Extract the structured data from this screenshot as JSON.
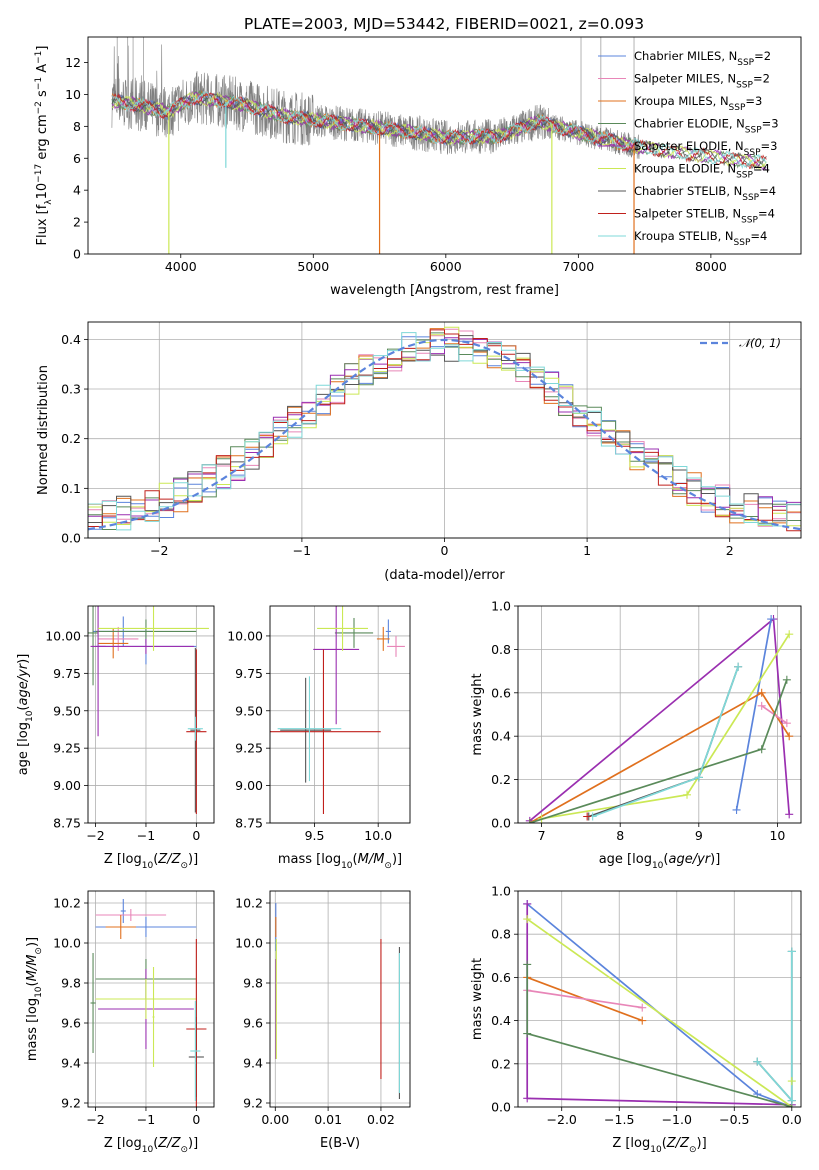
{
  "figure": {
    "title": "PLATE=2003, MJD=53442, FIBERID=0021, z=0.093"
  },
  "colors": {
    "Chabrier MILES": "#5b84dc",
    "Salpeter MILES": "#e886b8",
    "Kroupa MILES": "#e0701e",
    "Chabrier ELODIE": "#5a8a5a",
    "Salpeter ELODIE": "#9a2fb0",
    "Kroupa ELODIE": "#cbe855",
    "Chabrier STELIB": "#555555",
    "Salpeter STELIB": "#c0201c",
    "Kroupa STELIB": "#7fd8d8",
    "data": "#808080",
    "normal": "#5b84dc"
  },
  "chart_data": [
    {
      "id": "spectrum",
      "type": "line",
      "xlabel": "wavelength [Angstrom, rest frame]",
      "ylabel": "Flux [f_λ 10^-17 erg cm^-2 s^-1 A^-1]",
      "xlim": [
        3300,
        8680
      ],
      "ylim": [
        0,
        13.6
      ],
      "xticks": [
        4000,
        5000,
        6000,
        7000,
        8000
      ],
      "yticks": [
        0,
        2,
        4,
        6,
        8,
        10,
        12
      ],
      "legend_position": "upper right",
      "series": [
        {
          "name": "Chabrier MILES",
          "nssp": "2"
        },
        {
          "name": "Salpeter MILES",
          "nssp": "2"
        },
        {
          "name": "Kroupa MILES",
          "nssp": "3"
        },
        {
          "name": "Chabrier ELODIE",
          "nssp": "3"
        },
        {
          "name": "Salpeter ELODIE",
          "nssp": "3"
        },
        {
          "name": "Kroupa ELODIE",
          "nssp": "4"
        },
        {
          "name": "Chabrier STELIB",
          "nssp": "4"
        },
        {
          "name": "Salpeter STELIB",
          "nssp": "4"
        },
        {
          "name": "Kroupa STELIB",
          "nssp": "4"
        }
      ],
      "continuum": [
        [
          3500,
          9.6
        ],
        [
          3700,
          9.3
        ],
        [
          3900,
          8.9
        ],
        [
          4100,
          9.8
        ],
        [
          4300,
          9.6
        ],
        [
          4500,
          9.3
        ],
        [
          4800,
          8.6
        ],
        [
          5200,
          8.2
        ],
        [
          5600,
          7.8
        ],
        [
          6000,
          7.3
        ],
        [
          6400,
          7.4
        ],
        [
          6700,
          8.3
        ],
        [
          7000,
          7.6
        ],
        [
          7400,
          6.8
        ],
        [
          7800,
          6.3
        ],
        [
          8200,
          5.9
        ],
        [
          8420,
          5.7
        ]
      ],
      "spikes": [
        [
          3910,
          0
        ],
        [
          4340,
          5.4
        ],
        [
          5500,
          0
        ],
        [
          6800,
          0
        ],
        [
          7420,
          0
        ]
      ],
      "grid": false
    },
    {
      "id": "residuals",
      "type": "histogram",
      "xlabel": "(data-model)/error",
      "ylabel": "Normed distribution",
      "xlim": [
        -2.5,
        2.5
      ],
      "ylim": [
        0,
        0.435
      ],
      "xticks": [
        -2,
        -1,
        0,
        1,
        2
      ],
      "yticks": [
        0.0,
        0.1,
        0.2,
        0.3,
        0.4
      ],
      "bin_width": 0.1,
      "legend": "𝒩(0, 1)",
      "legend_position": "upper right",
      "grid": true
    },
    {
      "id": "age-vs-Z",
      "type": "errorbar",
      "xlabel": "Z [log10(Z/Z⊙)]",
      "ylabel": "age  [log10(age/yr)]",
      "xlim": [
        -2.15,
        0.35
      ],
      "ylim": [
        8.75,
        10.2
      ],
      "xticks": [
        -2,
        -1,
        0
      ],
      "yticks": [
        8.75,
        9.0,
        9.25,
        9.5,
        9.75,
        10.0
      ],
      "points": [
        {
          "s": "Chabrier MILES",
          "x": -1.45,
          "y": 10.03,
          "xe": 0.6,
          "ye": 0.1
        },
        {
          "s": "Chabrier MILES",
          "x": -1.0,
          "y": 9.93,
          "xe": 1.0,
          "ye": 0.12
        },
        {
          "s": "Salpeter MILES",
          "x": -1.55,
          "y": 9.98,
          "xe": 0.4,
          "ye": 0.08
        },
        {
          "s": "Kroupa MILES",
          "x": -1.65,
          "y": 9.95,
          "xe": 0.3,
          "ye": 0.1
        },
        {
          "s": "Chabrier ELODIE",
          "x": -2.05,
          "y": 10.02,
          "xe": 0.1,
          "ye": 0.35
        },
        {
          "s": "Chabrier ELODIE",
          "x": -1.0,
          "y": 10.03,
          "xe": 1.0,
          "ye": 0.08
        },
        {
          "s": "Salpeter ELODIE",
          "x": -1.95,
          "y": 9.93,
          "xe": 0.15,
          "ye": 0.6
        },
        {
          "s": "Salpeter ELODIE",
          "x": -1.0,
          "y": 9.93,
          "xe": 0.95,
          "ye": 0.05
        },
        {
          "s": "Kroupa ELODIE",
          "x": -0.85,
          "y": 10.05,
          "xe": 1.1,
          "ye": 0.15
        },
        {
          "s": "Chabrier STELIB",
          "x": -0.02,
          "y": 9.37,
          "xe": 0.1,
          "ye": 0.55
        },
        {
          "s": "Salpeter STELIB",
          "x": 0.0,
          "y": 9.36,
          "xe": 0.2,
          "ye": 0.55
        },
        {
          "s": "Kroupa STELIB",
          "x": -0.02,
          "y": 9.38,
          "xe": 0.15,
          "ye": 0.08
        }
      ],
      "grid": true
    },
    {
      "id": "age-vs-mass",
      "type": "errorbar",
      "xlabel": "mass [log10(M/M⊙)]",
      "ylabel": "",
      "xlim": [
        9.15,
        10.25
      ],
      "ylim": [
        8.75,
        10.2
      ],
      "xticks": [
        9.5,
        10.0
      ],
      "yticks": [
        8.75,
        9.0,
        9.25,
        9.5,
        9.75,
        10.0
      ],
      "points": [
        {
          "s": "Chabrier MILES",
          "x": 10.08,
          "y": 10.03,
          "xe": 0.02,
          "ye": 0.08
        },
        {
          "s": "Salpeter MILES",
          "x": 10.14,
          "y": 9.93,
          "xe": 0.07,
          "ye": 0.07
        },
        {
          "s": "Kroupa MILES",
          "x": 10.04,
          "y": 9.98,
          "xe": 0.05,
          "ye": 0.08
        },
        {
          "s": "Chabrier ELODIE",
          "x": 9.81,
          "y": 10.02,
          "xe": 0.15,
          "ye": 0.1
        },
        {
          "s": "Salpeter ELODIE",
          "x": 9.67,
          "y": 9.91,
          "xe": 0.18,
          "ye": 0.5
        },
        {
          "s": "Kroupa ELODIE",
          "x": 9.72,
          "y": 10.05,
          "xe": 0.2,
          "ye": 0.15
        },
        {
          "s": "Chabrier STELIB",
          "x": 9.43,
          "y": 9.37,
          "xe": 0.2,
          "ye": 0.35
        },
        {
          "s": "Salpeter STELIB",
          "x": 9.57,
          "y": 9.36,
          "xe": 0.45,
          "ye": 0.55
        },
        {
          "s": "Kroupa STELIB",
          "x": 9.46,
          "y": 9.38,
          "xe": 0.25,
          "ye": 0.35
        }
      ],
      "grid": true
    },
    {
      "id": "weight-vs-age",
      "type": "line",
      "xlabel": "age  [log10(age/yr)]",
      "ylabel": "mass weight",
      "xlim": [
        6.7,
        10.3
      ],
      "ylim": [
        0,
        1.0
      ],
      "xticks": [
        7,
        8,
        9,
        10
      ],
      "yticks": [
        0.0,
        0.2,
        0.4,
        0.6,
        0.8,
        1.0
      ],
      "lines": [
        {
          "s": "Salpeter ELODIE",
          "pts": [
            [
              6.85,
              0.01
            ],
            [
              9.95,
              0.94
            ],
            [
              10.15,
              0.04
            ]
          ]
        },
        {
          "s": "Chabrier MILES",
          "pts": [
            [
              9.48,
              0.06
            ],
            [
              9.92,
              0.94
            ]
          ]
        },
        {
          "s": "Kroupa MILES",
          "pts": [
            [
              6.85,
              0.0
            ],
            [
              9.8,
              0.6
            ],
            [
              10.15,
              0.4
            ]
          ]
        },
        {
          "s": "Salpeter MILES",
          "pts": [
            [
              9.8,
              0.54
            ],
            [
              10.12,
              0.46
            ]
          ]
        },
        {
          "s": "Kroupa ELODIE",
          "pts": [
            [
              7.0,
              0.02
            ],
            [
              8.85,
              0.13
            ],
            [
              10.15,
              0.87
            ]
          ]
        },
        {
          "s": "Chabrier ELODIE",
          "pts": [
            [
              6.85,
              0.0
            ],
            [
              9.8,
              0.34
            ],
            [
              10.12,
              0.66
            ]
          ]
        },
        {
          "s": "Chabrier STELIB",
          "pts": [
            [
              7.6,
              0.03
            ],
            [
              9.0,
              0.21
            ],
            [
              9.5,
              0.72
            ]
          ]
        },
        {
          "s": "Kroupa STELIB",
          "pts": [
            [
              7.65,
              0.03
            ],
            [
              9.0,
              0.21
            ],
            [
              9.5,
              0.72
            ]
          ]
        },
        {
          "s": "Salpeter STELIB",
          "pts": [
            [
              7.58,
              0.03
            ]
          ]
        }
      ],
      "grid": true
    },
    {
      "id": "mass-vs-Z",
      "type": "errorbar",
      "xlabel": "Z [log10(Z/Z⊙)]",
      "ylabel": "mass [log10(M/M⊙)]",
      "xlim": [
        -2.15,
        0.35
      ],
      "ylim": [
        9.18,
        10.26
      ],
      "xticks": [
        -2,
        -1,
        0
      ],
      "yticks": [
        9.2,
        9.4,
        9.6,
        9.8,
        10.0,
        10.2
      ],
      "points": [
        {
          "s": "Chabrier MILES",
          "x": -1.0,
          "y": 10.08,
          "xe": 1.0,
          "ye": 0.05
        },
        {
          "s": "Chabrier MILES",
          "x": -1.45,
          "y": 10.16,
          "xe": 0.05,
          "ye": 0.06
        },
        {
          "s": "Salpeter MILES",
          "x": -1.3,
          "y": 10.14,
          "xe": 0.7,
          "ye": 0.03
        },
        {
          "s": "Kroupa MILES",
          "x": -1.5,
          "y": 10.08,
          "xe": 0.3,
          "ye": 0.06
        },
        {
          "s": "Chabrier ELODIE",
          "x": -1.0,
          "y": 9.82,
          "xe": 1.0,
          "ye": 0.1
        },
        {
          "s": "Chabrier ELODIE",
          "x": -2.05,
          "y": 9.7,
          "xe": 0.05,
          "ye": 0.25
        },
        {
          "s": "Salpeter ELODIE",
          "x": -1.0,
          "y": 9.67,
          "xe": 0.95,
          "ye": 0.2
        },
        {
          "s": "Kroupa ELODIE",
          "x": -1.0,
          "y": 9.72,
          "xe": 1.0,
          "ye": 0.1
        },
        {
          "s": "Kroupa ELODIE",
          "x": -0.85,
          "y": 9.63,
          "xe": 0.02,
          "ye": 0.25
        },
        {
          "s": "Chabrier STELIB",
          "x": 0.0,
          "y": 9.43,
          "xe": 0.15,
          "ye": 0.2
        },
        {
          "s": "Salpeter STELIB",
          "x": 0.0,
          "y": 9.57,
          "xe": 0.2,
          "ye": 0.45
        },
        {
          "s": "Kroupa STELIB",
          "x": -0.02,
          "y": 9.46,
          "xe": 0.1,
          "ye": 0.25
        }
      ],
      "grid": true
    },
    {
      "id": "mass-vs-EBV",
      "type": "errorbar",
      "xlabel": "E(B-V)",
      "ylabel": "",
      "xlim": [
        -0.001,
        0.0255
      ],
      "ylim": [
        9.18,
        10.26
      ],
      "xticks": [
        0.0,
        0.01,
        0.02
      ],
      "yticks": [
        9.2,
        9.4,
        9.6,
        9.8,
        10.0,
        10.2
      ],
      "points": [
        {
          "s": "Chabrier MILES",
          "x": 0.0001,
          "y": 10.08,
          "xe": 0.0,
          "ye": 0.12
        },
        {
          "s": "Kroupa MILES",
          "x": 0.0001,
          "y": 10.08,
          "xe": 0.0,
          "ye": 0.05
        },
        {
          "s": "Salpeter ELODIE",
          "x": 0.0001,
          "y": 9.67,
          "xe": 0.0,
          "ye": 0.25
        },
        {
          "s": "Kroupa ELODIE",
          "x": 0.0002,
          "y": 9.72,
          "xe": 0.0,
          "ye": 0.3
        },
        {
          "s": "Salpeter STELIB",
          "x": 0.02,
          "y": 9.67,
          "xe": 0.0,
          "ye": 0.35
        },
        {
          "s": "Chabrier STELIB",
          "x": 0.0235,
          "y": 9.6,
          "xe": 0.0,
          "ye": 0.38
        },
        {
          "s": "Kroupa STELIB",
          "x": 0.0235,
          "y": 9.6,
          "xe": 0.0,
          "ye": 0.35
        }
      ],
      "grid": true
    },
    {
      "id": "weight-vs-Z",
      "type": "line",
      "xlabel": "Z [log10(Z/Z⊙)]",
      "ylabel": "mass weight",
      "xlim": [
        -2.38,
        0.08
      ],
      "ylim": [
        0,
        1.0
      ],
      "xticks": [
        -2.0,
        -1.5,
        -1.0,
        -0.5,
        0.0
      ],
      "yticks": [
        0.0,
        0.2,
        0.4,
        0.6,
        0.8,
        1.0
      ],
      "lines": [
        {
          "s": "Chabrier MILES",
          "pts": [
            [
              -2.3,
              0.94
            ],
            [
              -0.3,
              0.06
            ],
            [
              0.0,
              0.0
            ]
          ]
        },
        {
          "s": "Salpeter ELODIE",
          "pts": [
            [
              -2.3,
              0.94
            ],
            [
              -2.3,
              0.04
            ],
            [
              0.0,
              0.01
            ]
          ]
        },
        {
          "s": "Kroupa ELODIE",
          "pts": [
            [
              -2.3,
              0.87
            ],
            [
              0.0,
              0.0
            ]
          ]
        },
        {
          "s": "Kroupa MILES",
          "pts": [
            [
              -2.3,
              0.6
            ],
            [
              -1.3,
              0.4
            ]
          ]
        },
        {
          "s": "Salpeter MILES",
          "pts": [
            [
              -2.3,
              0.54
            ],
            [
              -1.3,
              0.46
            ]
          ]
        },
        {
          "s": "Chabrier ELODIE",
          "pts": [
            [
              -2.3,
              0.66
            ],
            [
              -2.3,
              0.34
            ],
            [
              0.0,
              0.0
            ]
          ]
        },
        {
          "s": "Chabrier STELIB",
          "pts": [
            [
              -0.3,
              0.21
            ],
            [
              0.0,
              0.03
            ],
            [
              0.0,
              0.72
            ]
          ]
        },
        {
          "s": "Kroupa STELIB",
          "pts": [
            [
              -0.3,
              0.21
            ],
            [
              0.0,
              0.03
            ],
            [
              0.0,
              0.72
            ]
          ]
        },
        {
          "s": "Kroupa ELODIE",
          "pts": [
            [
              0.0,
              0.12
            ]
          ]
        }
      ],
      "grid": true
    }
  ]
}
